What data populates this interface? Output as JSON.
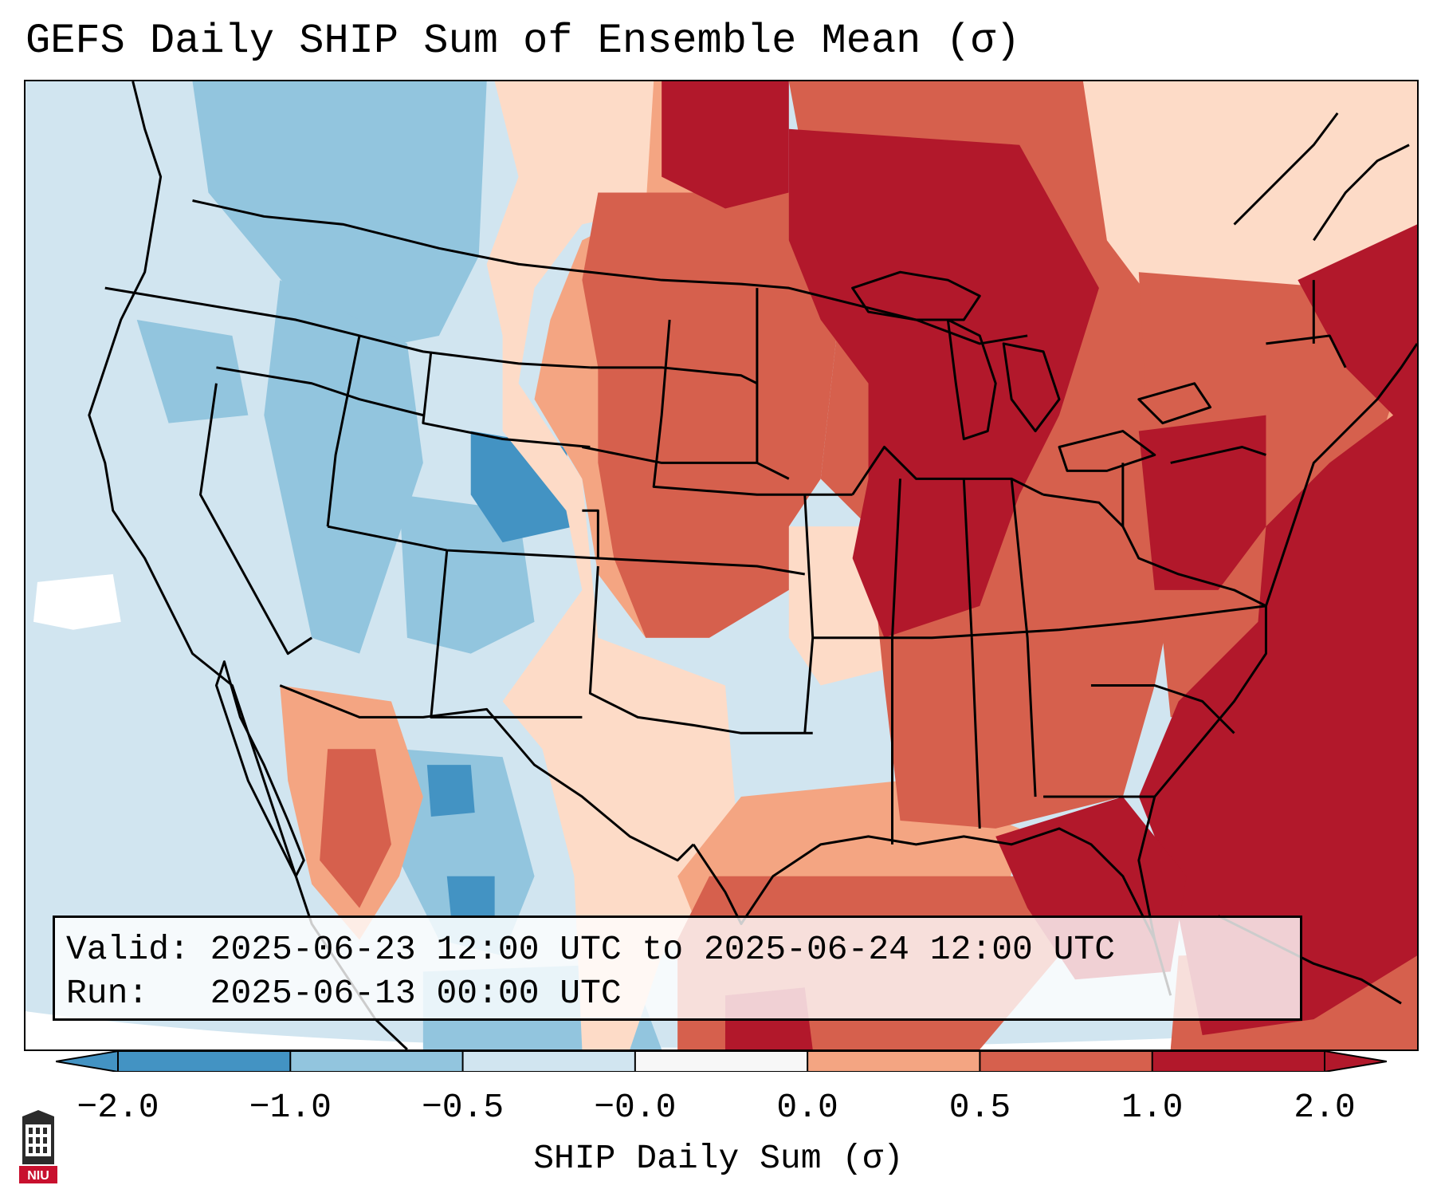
{
  "title": "GEFS Daily SHIP Sum of Ensemble Mean (σ)",
  "info": {
    "valid_label": "Valid:",
    "valid_value": "2025-06-23 12:00 UTC to 2025-06-24 12:00 UTC",
    "run_label": "Run:",
    "run_value": "2025-06-13 00:00 UTC"
  },
  "colorbar": {
    "label": "SHIP Daily Sum (σ)",
    "ticks": [
      "−2.0",
      "−1.0",
      "−0.5",
      "−0.0",
      "0.0",
      "0.5",
      "1.0",
      "2.0"
    ],
    "colors": [
      "#4393c3",
      "#92c5de",
      "#d1e5f0",
      "#f7f7f7",
      "#fddbc7",
      "#f4a582",
      "#d6604d",
      "#b2182b"
    ],
    "extend": "both"
  },
  "logo": {
    "text": "NIU",
    "color": "#c8102e"
  }
}
